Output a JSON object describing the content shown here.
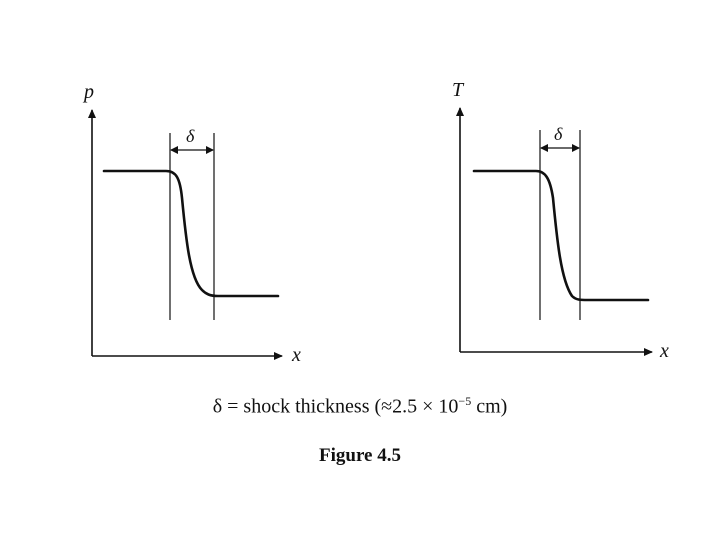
{
  "left_plot": {
    "y_label": "p",
    "x_label": "x",
    "width_label": "δ"
  },
  "right_plot": {
    "y_label": "T",
    "x_label": "x",
    "width_label": "δ"
  },
  "caption": {
    "delta": "δ",
    "text_before": " = shock thickness (≈2.5 × 10",
    "exponent": "−5",
    "text_after": " cm)"
  },
  "figure_label": "Figure 4.5"
}
